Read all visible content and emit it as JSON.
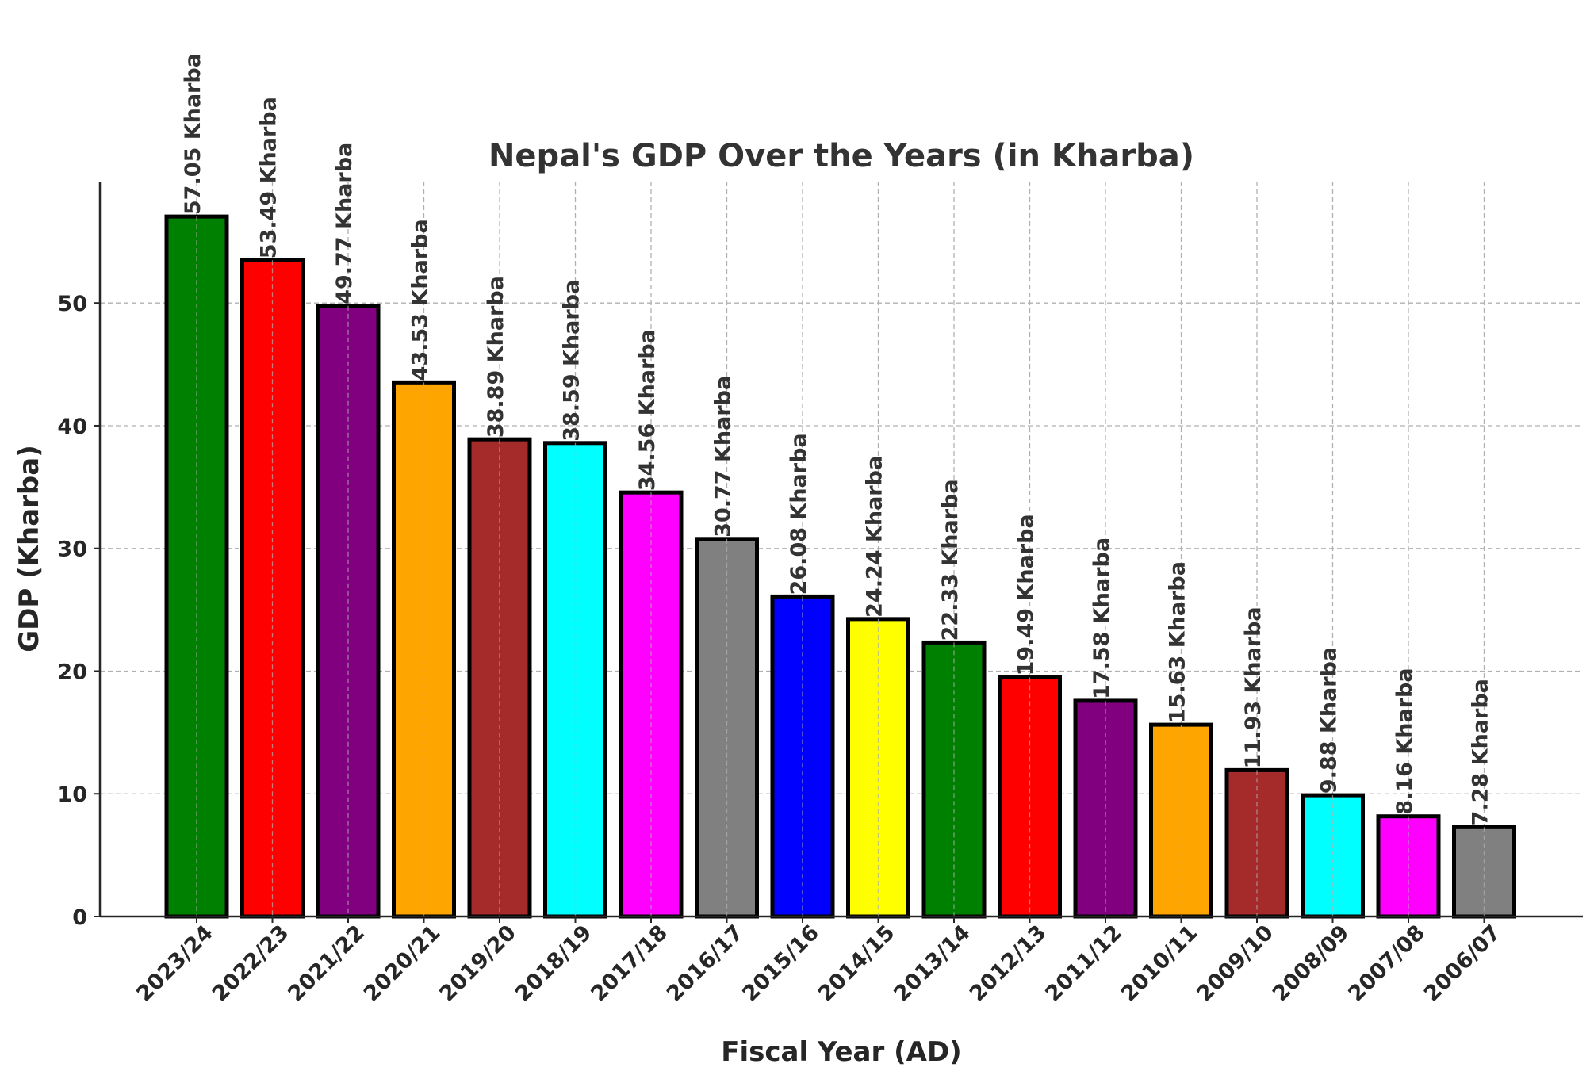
{
  "chart_data": {
    "type": "bar",
    "title": "Nepal's GDP Over the Years (in Kharba)",
    "xlabel": "Fiscal Year (AD)",
    "ylabel": "GDP (Kharba)",
    "ylim": [
      0,
      59.9
    ],
    "yticks": [
      0,
      10,
      20,
      30,
      40,
      50
    ],
    "grid": true,
    "categories": [
      "2023/24",
      "2022/23",
      "2021/22",
      "2020/21",
      "2019/20",
      "2018/19",
      "2017/18",
      "2016/17",
      "2015/16",
      "2014/15",
      "2013/14",
      "2012/13",
      "2011/12",
      "2010/11",
      "2009/10",
      "2008/09",
      "2007/08",
      "2006/07"
    ],
    "values": [
      57.05,
      53.49,
      49.77,
      43.53,
      38.89,
      38.59,
      34.56,
      30.77,
      26.08,
      24.24,
      22.33,
      19.49,
      17.58,
      15.63,
      11.93,
      9.88,
      8.16,
      7.28
    ],
    "data_labels": [
      "57.05 Kharba",
      "53.49 Kharba",
      "49.77 Kharba",
      "43.53 Kharba",
      "38.89 Kharba",
      "38.59 Kharba",
      "34.56 Kharba",
      "30.77 Kharba",
      "26.08 Kharba",
      "24.24 Kharba",
      "22.33 Kharba",
      "19.49 Kharba",
      "17.58 Kharba",
      "15.63 Kharba",
      "11.93 Kharba",
      "9.88 Kharba",
      "8.16 Kharba",
      "7.28 Kharba"
    ],
    "colors": [
      "#008000",
      "#ff0000",
      "#800080",
      "#ffa500",
      "#a52a2a",
      "#00ffff",
      "#ff00ff",
      "#808080",
      "#0000ff",
      "#ffff00",
      "#008000",
      "#ff0000",
      "#800080",
      "#ffa500",
      "#a52a2a",
      "#00ffff",
      "#ff00ff",
      "#808080"
    ],
    "edge_color": "#000000"
  }
}
